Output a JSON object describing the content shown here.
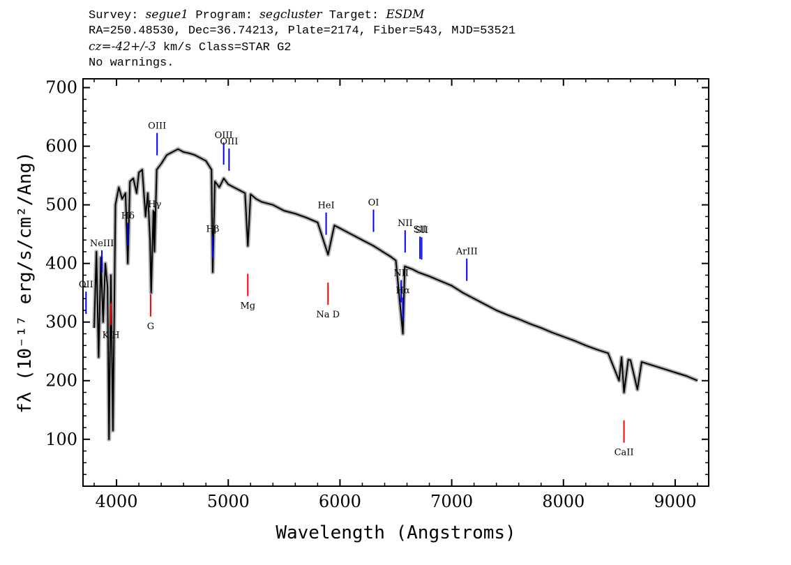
{
  "header": {
    "survey_label": "Survey:",
    "survey": "segue1",
    "program_label": "Program:",
    "program": "segcluster",
    "target_label": "Target:",
    "target": "ESDM",
    "line2": "RA=250.48530, Dec=36.74213, Plate=2174, Fiber=543, MJD=53521",
    "cz_label": "cz=",
    "cz_value": "-42+/-3",
    "cz_unit": " km/s Class=STAR G2",
    "line4": "No warnings."
  },
  "chart_data": {
    "type": "line",
    "xlabel": "Wavelength (Angstroms)",
    "ylabel": "fλ (10⁻¹⁷ erg/s/cm²/Ang)",
    "xlim": [
      3700,
      9300
    ],
    "ylim": [
      20,
      715
    ],
    "x_ticks": [
      4000,
      5000,
      6000,
      7000,
      8000,
      9000
    ],
    "y_ticks": [
      100,
      200,
      300,
      400,
      500,
      600,
      700
    ],
    "grid": false,
    "colors": {
      "spectrum": "#000000",
      "error": "#b0b0b0",
      "emission": "#0000ff",
      "absorption": "#ff0000"
    },
    "series": [
      {
        "x": [
          3800,
          3820,
          3840,
          3860,
          3880,
          3900,
          3920,
          3933,
          3950,
          3968,
          3990,
          4020,
          4050,
          4080,
          4101,
          4120,
          4150,
          4180,
          4200,
          4230,
          4260,
          4280,
          4300,
          4310,
          4330,
          4340,
          4360,
          4400,
          4450,
          4500,
          4550,
          4600,
          4650,
          4700,
          4750,
          4800,
          4850,
          4861,
          4880,
          4920,
          4960,
          5000,
          5050,
          5100,
          5150,
          5175,
          5200,
          5250,
          5300,
          5400,
          5500,
          5600,
          5700,
          5800,
          5893,
          5950,
          6000,
          6100,
          6200,
          6300,
          6400,
          6450,
          6500,
          6563,
          6580,
          6650,
          6700,
          6800,
          6900,
          7000,
          7100,
          7200,
          7300,
          7400,
          7500,
          7600,
          7700,
          7800,
          7900,
          8000,
          8100,
          8200,
          8300,
          8400,
          8498,
          8520,
          8542,
          8580,
          8600,
          8662,
          8700,
          8800,
          8900,
          9000,
          9100,
          9200
        ],
        "y": [
          290,
          420,
          240,
          410,
          300,
          400,
          360,
          100,
          380,
          115,
          500,
          530,
          510,
          520,
          400,
          540,
          545,
          520,
          555,
          560,
          480,
          520,
          440,
          350,
          490,
          420,
          560,
          570,
          585,
          590,
          595,
          590,
          588,
          585,
          580,
          575,
          560,
          385,
          540,
          530,
          545,
          535,
          530,
          525,
          520,
          430,
          518,
          510,
          505,
          500,
          490,
          485,
          478,
          470,
          415,
          465,
          460,
          450,
          440,
          430,
          418,
          412,
          405,
          280,
          395,
          390,
          385,
          378,
          370,
          362,
          350,
          340,
          330,
          320,
          312,
          305,
          297,
          290,
          282,
          275,
          268,
          260,
          253,
          247,
          200,
          240,
          180,
          236,
          235,
          185,
          232,
          226,
          220,
          214,
          208,
          200
        ]
      }
    ],
    "line_labels": [
      {
        "name": "Hγ",
        "x": 4341,
        "color": "black",
        "label_pos": "top"
      },
      {
        "name": "Hδ",
        "x": 4102,
        "color": "blue",
        "label_pos": "top"
      },
      {
        "name": "OIII",
        "x": 4363,
        "color": "blue",
        "label_pos": "top"
      },
      {
        "name": "Hβ",
        "x": 4861,
        "color": "blue",
        "label_pos": "top"
      },
      {
        "name": "OIII",
        "x": 4959,
        "color": "blue",
        "label_pos": "top"
      },
      {
        "name": "OIII",
        "x": 5007,
        "color": "blue",
        "label_pos": "top"
      },
      {
        "name": "OII",
        "x": 3727,
        "color": "blue",
        "label_pos": "top"
      },
      {
        "name": "NeIII",
        "x": 3869,
        "color": "blue",
        "label_pos": "top"
      },
      {
        "name": "HeI",
        "x": 5876,
        "color": "blue",
        "label_pos": "top"
      },
      {
        "name": "OI",
        "x": 6300,
        "color": "blue",
        "label_pos": "top"
      },
      {
        "name": "NII",
        "x": 6548,
        "color": "blue",
        "label_pos": "top"
      },
      {
        "name": "Hα",
        "x": 6563,
        "color": "blue",
        "label_pos": "top"
      },
      {
        "name": "NII",
        "x": 6583,
        "color": "blue",
        "label_pos": "top"
      },
      {
        "name": "SII",
        "x": 6716,
        "color": "blue",
        "label_pos": "top"
      },
      {
        "name": "SII",
        "x": 6731,
        "color": "blue",
        "label_pos": "top"
      },
      {
        "name": "ArIII",
        "x": 7135,
        "color": "blue",
        "label_pos": "top"
      },
      {
        "name": "K H",
        "x": 3950,
        "color": "red",
        "label_pos": "bottom"
      },
      {
        "name": "G",
        "x": 4305,
        "color": "red",
        "label_pos": "bottom"
      },
      {
        "name": "Mg",
        "x": 5175,
        "color": "red",
        "label_pos": "bottom"
      },
      {
        "name": "Na D",
        "x": 5893,
        "color": "red",
        "label_pos": "bottom"
      },
      {
        "name": "CaII",
        "x": 8542,
        "color": "red",
        "label_pos": "bottom"
      }
    ]
  }
}
